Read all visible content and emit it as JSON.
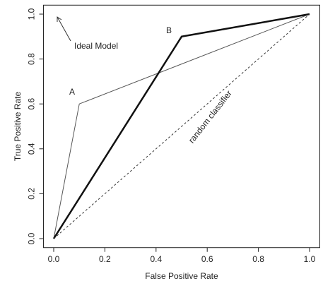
{
  "chart_data": {
    "type": "line",
    "x_label": "False Positive Rate",
    "y_label": "True Positive Rate",
    "xlim": [
      0,
      1
    ],
    "ylim": [
      0,
      1
    ],
    "xticks": [
      {
        "value": 0,
        "label": "0.0"
      },
      0.2,
      0.4,
      0.6,
      0.8,
      {
        "value": 1,
        "label": "1.0"
      }
    ],
    "yticks": [
      {
        "value": 0,
        "label": "0.0"
      },
      0.2,
      0.4,
      0.6,
      0.8,
      {
        "value": 1,
        "label": "1.0"
      }
    ],
    "series": [
      {
        "name": "A",
        "color": "#555555",
        "style": "solid",
        "x": [
          0,
          0.1,
          1
        ],
        "values": [
          0,
          0.6,
          1
        ]
      },
      {
        "name": "B",
        "color": "#111111",
        "style": "bold",
        "x": [
          0,
          0.5,
          1
        ],
        "values": [
          0,
          0.9,
          1
        ]
      },
      {
        "name": "random classifier",
        "color": "#333333",
        "style": "dashed",
        "x": [
          0,
          1
        ],
        "values": [
          0,
          1
        ]
      }
    ],
    "annotations": [
      {
        "text": "Ideal Model"
      }
    ]
  }
}
